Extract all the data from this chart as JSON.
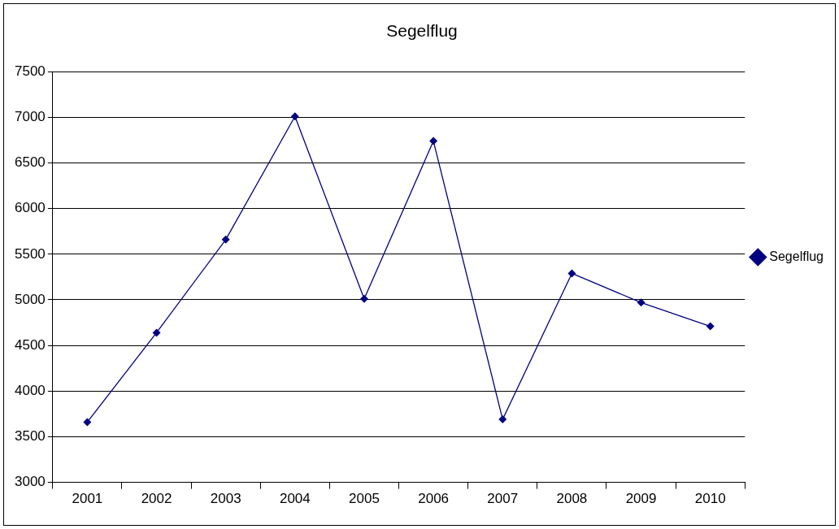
{
  "chart_data": {
    "type": "line",
    "title": "Segelflug",
    "categories": [
      "2001",
      "2002",
      "2003",
      "2004",
      "2005",
      "2006",
      "2007",
      "2008",
      "2009",
      "2010"
    ],
    "series": [
      {
        "name": "Segelflug",
        "color": "#000080",
        "values": [
          3660,
          4640,
          5660,
          7010,
          5010,
          6740,
          3690,
          5290,
          4970,
          4710
        ]
      }
    ],
    "ylim": [
      3000,
      7500
    ],
    "yticks": [
      3000,
      3500,
      4000,
      4500,
      5000,
      5500,
      6000,
      6500,
      7000,
      7500
    ],
    "grid": "y",
    "legend": "right",
    "marker": "diamond",
    "line_style": "solid"
  }
}
